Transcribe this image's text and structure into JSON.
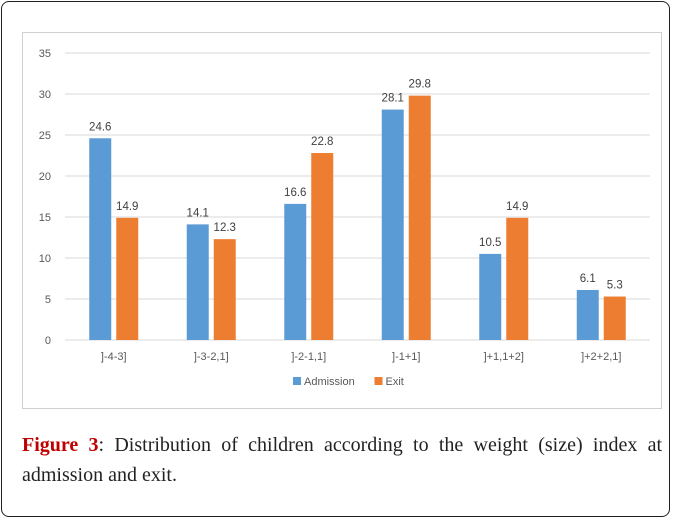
{
  "chart_data": {
    "type": "bar",
    "categories": [
      "]-4-3]",
      "]-3-2,1]",
      "]-2-1,1]",
      "]-1+1]",
      "]+1,1+2]",
      "]+2+2,1]"
    ],
    "series": [
      {
        "name": "Admission",
        "values": [
          24.6,
          14.1,
          16.6,
          28.1,
          10.5,
          6.1
        ],
        "color": "#5b9bd5"
      },
      {
        "name": "Exit",
        "values": [
          14.9,
          12.3,
          22.8,
          29.8,
          14.9,
          5.3
        ],
        "color": "#ed7d31"
      }
    ],
    "ylim": [
      0,
      35
    ],
    "yticks": [
      0,
      5,
      10,
      15,
      20,
      25,
      30,
      35
    ],
    "grid": true,
    "legend": "bottom"
  },
  "caption": {
    "label": "Figure 3",
    "text": ": Distribution of children according to the weight (size) index at admission and exit."
  }
}
